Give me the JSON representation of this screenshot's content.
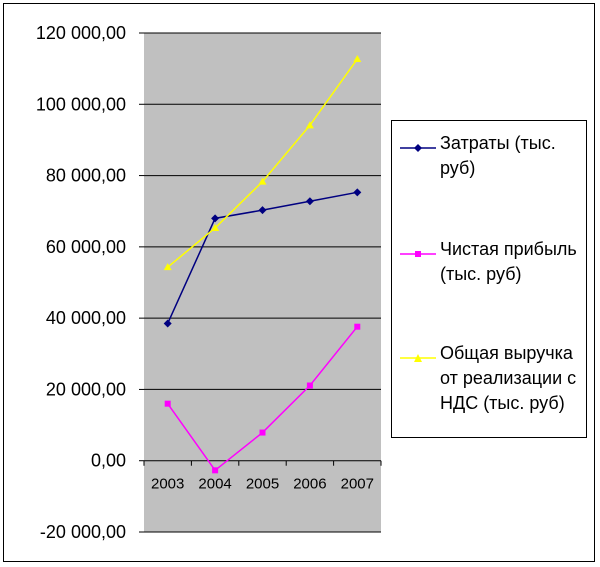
{
  "chart_data": {
    "type": "line",
    "title": "",
    "xlabel": "",
    "ylabel": "",
    "categories": [
      "2003",
      "2004",
      "2005",
      "2006",
      "2007"
    ],
    "ylim": [
      -20000,
      120000
    ],
    "y_ticks": [
      120000,
      100000,
      80000,
      60000,
      40000,
      20000,
      0,
      -20000
    ],
    "y_tick_labels": [
      "120 000,00",
      "100 000,00",
      "80 000,00",
      "60 000,00",
      "40 000,00",
      "20 000,00",
      "0,00",
      "-20 000,00"
    ],
    "grid": true,
    "plot_background": "#c0c0c0",
    "legend_position": "right",
    "series": [
      {
        "name": "Затраты (тыс. руб)",
        "color": "#000080",
        "marker": "diamond",
        "values": [
          38500,
          68000,
          70300,
          72800,
          75300
        ]
      },
      {
        "name": "Чистая прибыль (тыс. руб)",
        "color": "#ff00ff",
        "marker": "square",
        "values": [
          16000,
          -2700,
          7900,
          21100,
          37600
        ]
      },
      {
        "name": "Общая выручка от реализации с НДС (тыс. руб)",
        "color": "#ffff00",
        "marker": "triangle",
        "values": [
          54300,
          65300,
          78300,
          94100,
          112700
        ]
      }
    ]
  }
}
